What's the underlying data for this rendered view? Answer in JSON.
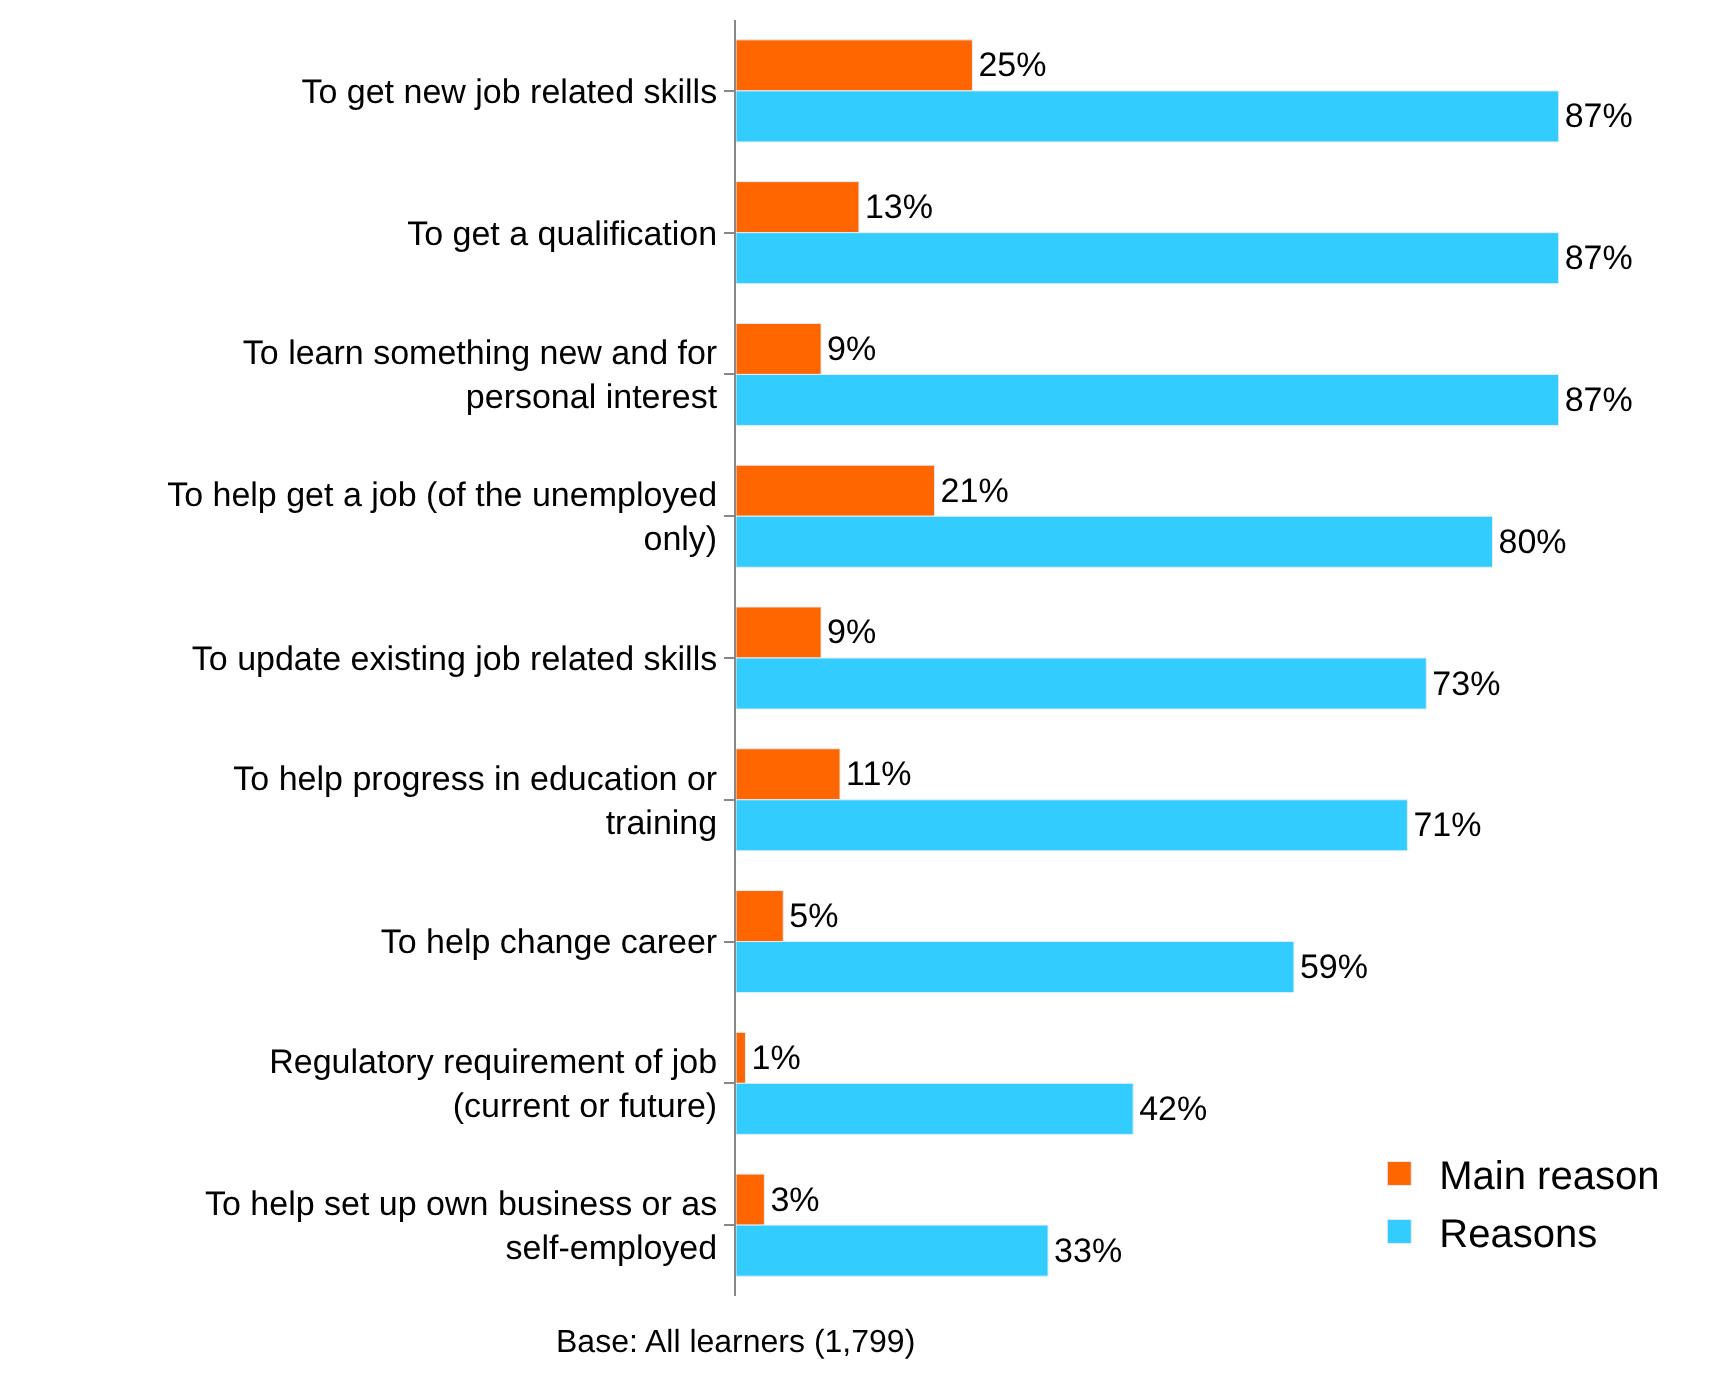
{
  "chart_data": {
    "type": "bar",
    "orientation": "horizontal",
    "categories": [
      "To get new job related skills",
      "To get a qualification",
      "To learn something new and for personal interest",
      "To help get a job (of the unemployed only)",
      "To update existing job related skills",
      "To help progress in education or training",
      "To help change career",
      "Regulatory requirement of job (current or future)",
      "To help set up own business or as self-employed"
    ],
    "series": [
      {
        "name": "Main reason",
        "color": "#ff6600",
        "values": [
          25,
          13,
          9,
          21,
          9,
          11,
          5,
          1,
          3
        ],
        "value_labels": [
          "25%",
          "13%",
          "9%",
          "21%",
          "9%",
          "11%",
          "5%",
          "1%",
          "3%"
        ]
      },
      {
        "name": "Reasons",
        "color": "#33ccff",
        "values": [
          87,
          87,
          87,
          80,
          73,
          71,
          59,
          42,
          33
        ],
        "value_labels": [
          "87%",
          "87%",
          "87%",
          "80%",
          "73%",
          "71%",
          "59%",
          "42%",
          "33%"
        ]
      }
    ],
    "legend": "bottom right",
    "annotations": [
      "Base: All learners (1,799)"
    ]
  }
}
